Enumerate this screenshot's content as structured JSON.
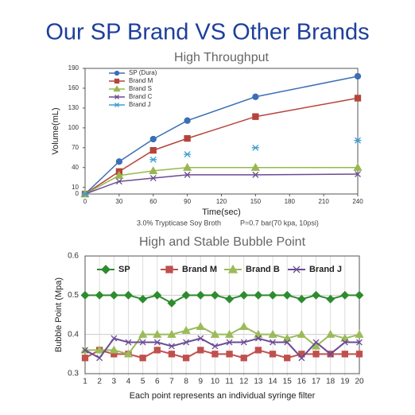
{
  "title": "Our SP Brand VS Other Brands",
  "chart_data": [
    {
      "type": "line",
      "title": "High Throughput",
      "x_label": "Time(sec)",
      "y_label": "Volume(mL)",
      "annotations": [
        "3.0% Trypticase Soy Broth",
        "P=0.7 bar(70 kpa, 10psi)"
      ],
      "x": [
        0,
        30,
        60,
        90,
        150,
        240
      ],
      "xlim": [
        0,
        240
      ],
      "xticks": [
        0,
        30,
        60,
        90,
        120,
        150,
        180,
        210,
        240
      ],
      "ylim": [
        0,
        190
      ],
      "yticks": [
        0,
        10,
        40,
        70,
        100,
        130,
        160,
        190
      ],
      "grid": false,
      "legend": "top-left",
      "series": [
        {
          "name": "SP (Dura)",
          "color": "#3a6fb5",
          "marker": "circle",
          "values": [
            0,
            49,
            83,
            111,
            147,
            178
          ]
        },
        {
          "name": "Brand M",
          "color": "#b5443a",
          "marker": "square",
          "values": [
            0,
            34,
            66,
            84,
            117,
            145
          ]
        },
        {
          "name": "Brand S",
          "color": "#98b84e",
          "marker": "triangle",
          "values": [
            0,
            28,
            35,
            40,
            40,
            40
          ]
        },
        {
          "name": "Brand C",
          "color": "#6a4b94",
          "marker": "x",
          "values": [
            0,
            19,
            24,
            29,
            29,
            30
          ]
        },
        {
          "name": "Brand J",
          "color": "#3f9fd0",
          "marker": "asterisk",
          "line": false,
          "values": [
            0,
            null,
            52,
            60,
            70,
            81
          ]
        }
      ]
    },
    {
      "type": "line",
      "title": "High and Stable Bubble Point",
      "x_label": "Each point represents an individual syringe filter",
      "y_label": "Bubble Point (Mpa)",
      "x": [
        1,
        2,
        3,
        4,
        5,
        6,
        7,
        8,
        9,
        10,
        11,
        12,
        13,
        14,
        15,
        16,
        17,
        18,
        19,
        20
      ],
      "xlim": [
        1,
        20
      ],
      "xticks": [
        1,
        2,
        3,
        4,
        5,
        6,
        7,
        8,
        9,
        10,
        11,
        12,
        13,
        14,
        15,
        16,
        17,
        18,
        19,
        20
      ],
      "ylim": [
        0.3,
        0.6
      ],
      "yticks": [
        0.3,
        0.4,
        0.5,
        0.6
      ],
      "grid": true,
      "legend": "top",
      "series": [
        {
          "name": "SP",
          "color": "#2e8b2e",
          "marker": "diamond",
          "values": [
            0.5,
            0.5,
            0.5,
            0.5,
            0.49,
            0.5,
            0.48,
            0.5,
            0.5,
            0.5,
            0.49,
            0.5,
            0.5,
            0.5,
            0.5,
            0.49,
            0.5,
            0.49,
            0.5,
            0.5
          ]
        },
        {
          "name": "Brand M",
          "color": "#c0504d",
          "marker": "square",
          "values": [
            0.34,
            0.36,
            0.35,
            0.35,
            0.34,
            0.36,
            0.35,
            0.34,
            0.36,
            0.35,
            0.35,
            0.34,
            0.36,
            0.35,
            0.34,
            0.35,
            0.35,
            0.35,
            0.35,
            0.35
          ]
        },
        {
          "name": "Brand B",
          "color": "#9bbb59",
          "marker": "triangle",
          "values": [
            0.36,
            0.36,
            0.36,
            0.35,
            0.4,
            0.4,
            0.4,
            0.41,
            0.42,
            0.4,
            0.4,
            0.42,
            0.4,
            0.4,
            0.39,
            0.4,
            0.37,
            0.4,
            0.39,
            0.4
          ]
        },
        {
          "name": "Brand J",
          "color": "#6a4b94",
          "marker": "x",
          "values": [
            0.36,
            0.34,
            0.39,
            0.38,
            0.38,
            0.38,
            0.37,
            0.38,
            0.39,
            0.37,
            0.38,
            0.38,
            0.39,
            0.38,
            0.38,
            0.34,
            0.38,
            0.35,
            0.38,
            0.38
          ]
        }
      ]
    }
  ]
}
